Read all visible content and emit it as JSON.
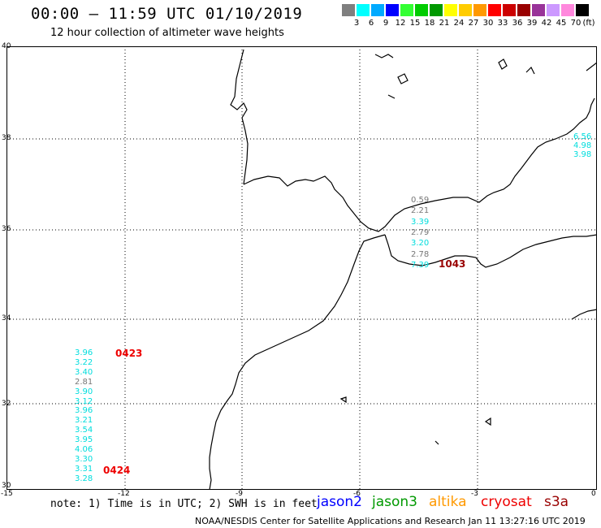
{
  "header": {
    "title": "00:00 – 11:59 UTC 01/10/2019",
    "subtitle": "12 hour collection of altimeter wave heights"
  },
  "legend": {
    "unit": "(ft)",
    "bins": [
      {
        "label": "3",
        "color": "#7f7f7f"
      },
      {
        "label": "6",
        "color": "#00ffff"
      },
      {
        "label": "9",
        "color": "#00aaff"
      },
      {
        "label": "12",
        "color": "#0000ff"
      },
      {
        "label": "15",
        "color": "#33ff33"
      },
      {
        "label": "18",
        "color": "#00cc00"
      },
      {
        "label": "21",
        "color": "#009900"
      },
      {
        "label": "24",
        "color": "#ffff00"
      },
      {
        "label": "27",
        "color": "#ffcc00"
      },
      {
        "label": "30",
        "color": "#ff9900"
      },
      {
        "label": "33",
        "color": "#ff0000"
      },
      {
        "label": "36",
        "color": "#cc0000"
      },
      {
        "label": "39",
        "color": "#990000"
      },
      {
        "label": "42",
        "color": "#993399"
      },
      {
        "label": "45",
        "color": "#cc99ff"
      },
      {
        "label": "70",
        "color": "#ff88dd"
      },
      {
        "label": "",
        "color": "#000000"
      }
    ]
  },
  "axes": {
    "lat_ticks": [
      "40",
      "38",
      "36",
      "34",
      "32",
      "30"
    ],
    "lon_ticks": [
      "-15",
      "-12",
      "-9",
      "-6",
      "-3",
      "0"
    ]
  },
  "observations": {
    "atlantic_track": [
      {
        "value": "3.96",
        "color": "#00dddd"
      },
      {
        "value": "3.22",
        "color": "#00dddd"
      },
      {
        "value": "3.40",
        "color": "#00dddd"
      },
      {
        "value": "2.81",
        "color": "#777777"
      },
      {
        "value": "3.90",
        "color": "#00dddd"
      },
      {
        "value": "3.12",
        "color": "#00dddd"
      },
      {
        "value": "3.96",
        "color": "#00dddd"
      },
      {
        "value": "3.21",
        "color": "#00dddd"
      },
      {
        "value": "3.54",
        "color": "#00dddd"
      },
      {
        "value": "3.95",
        "color": "#00dddd"
      },
      {
        "value": "4.06",
        "color": "#00dddd"
      },
      {
        "value": "3.30",
        "color": "#00dddd"
      },
      {
        "value": "3.31",
        "color": "#00dddd"
      },
      {
        "value": "3.28",
        "color": "#00dddd"
      }
    ],
    "atlantic_times": [
      {
        "value": "0423",
        "color": "#ee0000"
      },
      {
        "value": "0424",
        "color": "#ee0000"
      }
    ],
    "alboran_track": [
      {
        "value": "0.59",
        "color": "#777777"
      },
      {
        "value": "2.21",
        "color": "#777777"
      },
      {
        "value": "3.39",
        "color": "#00dddd"
      },
      {
        "value": "2.79",
        "color": "#777777"
      },
      {
        "value": "3.20",
        "color": "#00dddd"
      },
      {
        "value": "2.78",
        "color": "#777777"
      },
      {
        "value": "7.39",
        "color": "#00dddd"
      }
    ],
    "alboran_time": {
      "value": "1043",
      "color": "#990000"
    },
    "east_edge": [
      {
        "value": "6.56",
        "color": "#00dddd"
      },
      {
        "value": "4.98",
        "color": "#00dddd"
      },
      {
        "value": "3.98",
        "color": "#00dddd"
      }
    ]
  },
  "footer": {
    "note": "note: 1) Time is in UTC; 2) SWH is in feet",
    "satellites": [
      {
        "name": "jason2",
        "color": "#0000ff"
      },
      {
        "name": "jason3",
        "color": "#009900"
      },
      {
        "name": "altika",
        "color": "#ff9900"
      },
      {
        "name": "cryosat",
        "color": "#ee0000"
      },
      {
        "name": "s3a",
        "color": "#990000"
      }
    ],
    "credit": "NOAA/NESDIS Center for Satellite Applications and Research   Jan 11 13:27:16 UTC 2019"
  }
}
